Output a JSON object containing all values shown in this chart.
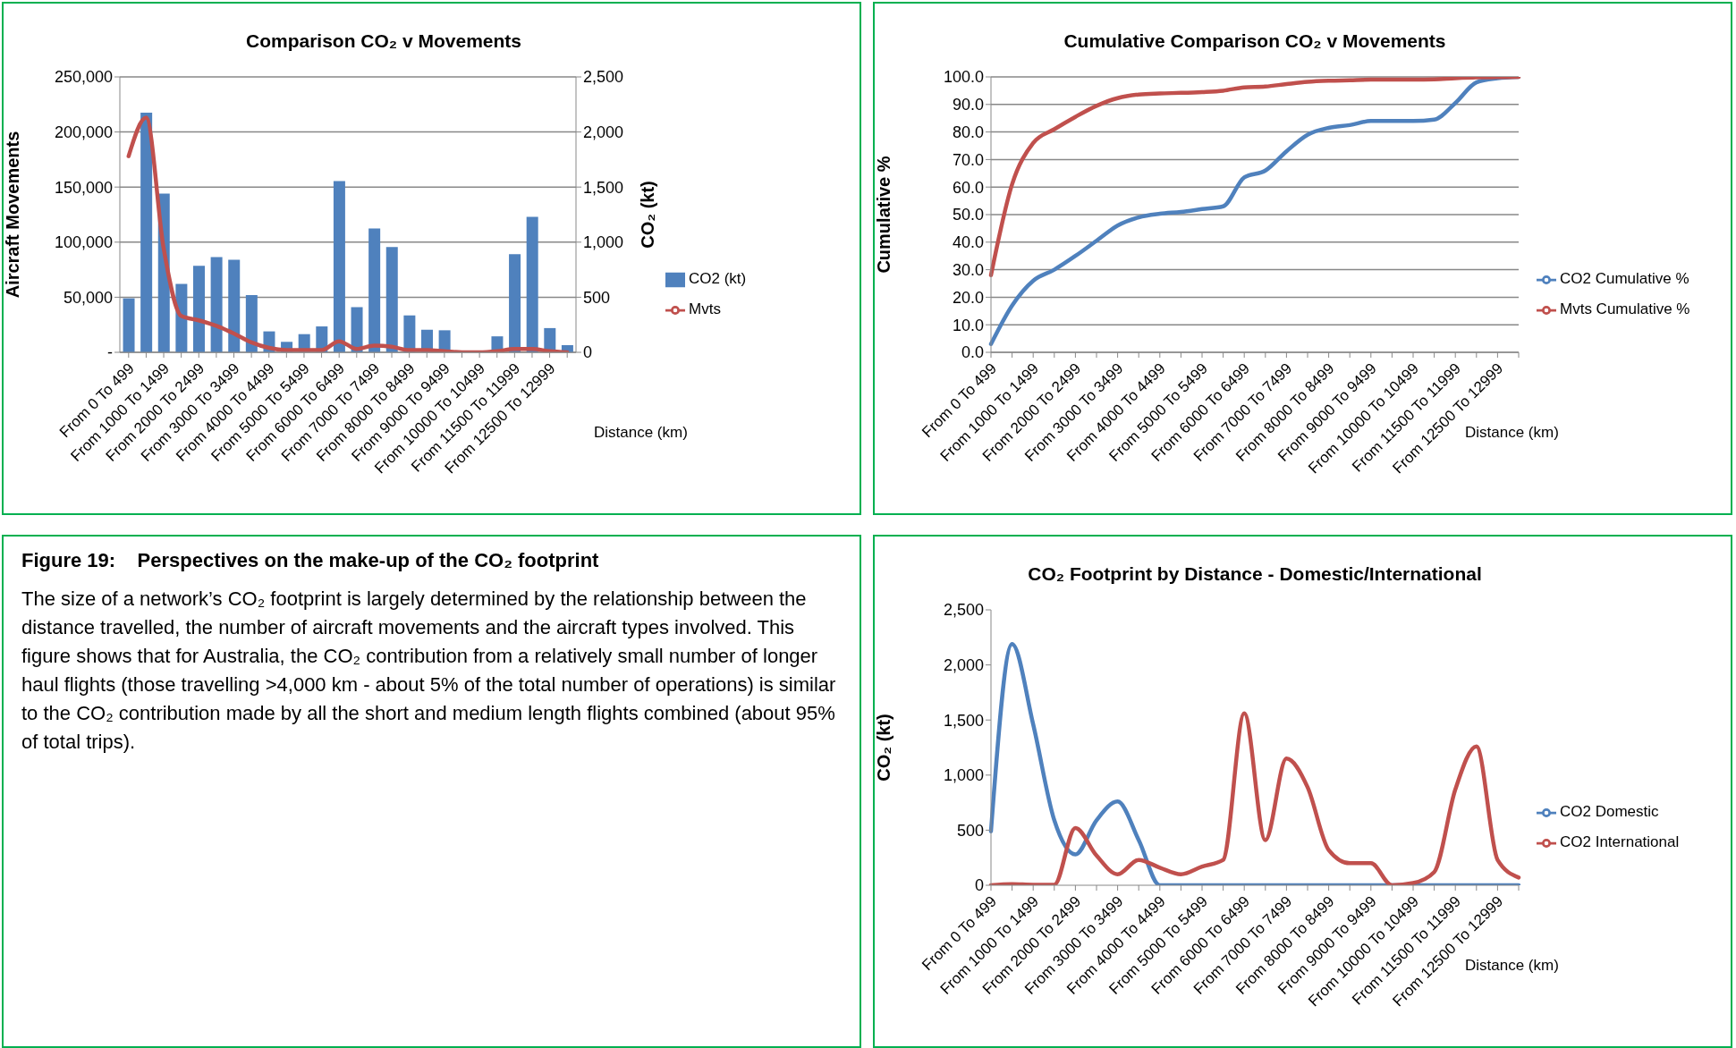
{
  "chart_data": [
    {
      "type": "bar",
      "title": "Comparison CO₂ v Movements",
      "xlabel": "Distance (km)",
      "ylabel": "Aircraft Movements",
      "y2label": "CO₂ (kt)",
      "categories": [
        "From 0 To 499",
        null,
        "From 1000 To 1499",
        null,
        "From 2000 To 2499",
        null,
        "From 3000 To 3499",
        null,
        "From 4000 To 4499",
        null,
        "From 5000 To 5499",
        null,
        "From 6000 To 6499",
        null,
        "From 7000 To 7499",
        null,
        "From 8000 To 8499",
        null,
        "From 9000 To 9499",
        null,
        "From 10000 To 10499",
        null,
        "From 11500 To 11999",
        null,
        "From 12500 To 12999",
        null
      ],
      "series": [
        {
          "name": "CO2 (kt)",
          "type": "bar",
          "axis": "y2",
          "color": "#4f81bd",
          "values": [
            490,
            2175,
            1440,
            620,
            785,
            865,
            840,
            520,
            190,
            95,
            165,
            235,
            1555,
            410,
            1125,
            955,
            335,
            205,
            200,
            0,
            0,
            145,
            890,
            1230,
            220,
            65
          ]
        },
        {
          "name": "Mvts",
          "type": "line",
          "axis": "y",
          "color": "#c0504d",
          "values": [
            178000,
            213000,
            94000,
            33000,
            29000,
            24000,
            17000,
            9000,
            4000,
            2000,
            2000,
            2000,
            10000,
            3000,
            6000,
            5000,
            2000,
            2000,
            1000,
            0,
            0,
            1000,
            3000,
            3000,
            1000,
            0
          ]
        }
      ],
      "ylim": [
        0,
        250000
      ],
      "yticks": [
        {
          "value": 0,
          "label": "-"
        },
        {
          "value": 50000,
          "label": "50,000"
        },
        {
          "value": 100000,
          "label": "100,000"
        },
        {
          "value": 150000,
          "label": "150,000"
        },
        {
          "value": 200000,
          "label": "200,000"
        },
        {
          "value": 250000,
          "label": "250,000"
        }
      ],
      "y2lim": [
        0,
        2500
      ],
      "y2ticks": [
        0,
        500,
        {
          "value": 1000,
          "label": "1,000"
        },
        {
          "value": 1500,
          "label": "1,500"
        },
        {
          "value": 2000,
          "label": "2,000"
        },
        {
          "value": 2500,
          "label": "2,500"
        }
      ],
      "grid": "y",
      "legend": "right"
    },
    {
      "type": "line",
      "title": "Cumulative Comparison CO₂ v Movements",
      "xlabel": "Distance (km)",
      "ylabel": "Cumulative %",
      "categories": [
        "From 0 To 499",
        null,
        "From 1000 To 1499",
        null,
        "From 2000 To 2499",
        null,
        "From 3000 To 3499",
        null,
        "From 4000 To 4499",
        null,
        "From 5000 To 5499",
        null,
        "From 6000 To 6499",
        null,
        "From 7000 To 7499",
        null,
        "From 8000 To 8499",
        null,
        "From 9000 To 9499",
        null,
        "From 10000 To 10499",
        null,
        "From 11500 To 11999",
        null,
        "From 12500 To 12999",
        null
      ],
      "series": [
        {
          "name": "CO2 Cumulative %",
          "color": "#4f81bd",
          "values": [
            3,
            17,
            26,
            30,
            35,
            40.5,
            46,
            49,
            50.3,
            51,
            52,
            53,
            63.5,
            66,
            73,
            79,
            81.5,
            82.5,
            84,
            84,
            84,
            84.5,
            90.5,
            98,
            99.5,
            100
          ]
        },
        {
          "name": "Mvts Cumulative %",
          "color": "#c0504d",
          "values": [
            28,
            61,
            76,
            81,
            85.5,
            89.5,
            92.3,
            93.6,
            94,
            94.2,
            94.5,
            95,
            96.2,
            96.5,
            97.4,
            98.2,
            98.6,
            98.8,
            99,
            99,
            99,
            99.1,
            99.5,
            99.8,
            99.9,
            100
          ]
        }
      ],
      "ylim": [
        0,
        100
      ],
      "yticks": [
        {
          "value": 0,
          "label": "0.0"
        },
        {
          "value": 10,
          "label": "10.0"
        },
        {
          "value": 20,
          "label": "20.0"
        },
        {
          "value": 30,
          "label": "30.0"
        },
        {
          "value": 40,
          "label": "40.0"
        },
        {
          "value": 50,
          "label": "50.0"
        },
        {
          "value": 60,
          "label": "60.0"
        },
        {
          "value": 70,
          "label": "70.0"
        },
        {
          "value": 80,
          "label": "80.0"
        },
        {
          "value": 90,
          "label": "90.0"
        },
        {
          "value": 100,
          "label": "100.0"
        }
      ],
      "grid": "y",
      "legend": "right"
    },
    {
      "type": "other",
      "title": "Figure 19:    Perspectives on the make-up of the CO₂ footprint",
      "annotations": [
        "The size of a network’s CO₂ footprint is largely determined by the relationship between the distance travelled, the number of aircraft movements and the aircraft types involved.  This figure shows that for Australia, the CO₂ contribution from a relatively small number of longer haul flights (those travelling >4,000 km - about 5% of the total number of operations) is similar to the CO₂ contribution made by all the short and medium length flights combined (about 95% of total trips)."
      ]
    },
    {
      "type": "line",
      "title": "CO₂ Footprint by Distance - Domestic/International",
      "xlabel": "Distance (km)",
      "ylabel": "CO₂ (kt)",
      "categories": [
        "From 0 To 499",
        null,
        "From 1000 To 1499",
        null,
        "From 2000 To 2499",
        null,
        "From 3000 To 3499",
        null,
        "From 4000 To 4499",
        null,
        "From 5000 To 5499",
        null,
        "From 6000 To 6499",
        null,
        "From 7000 To 7499",
        null,
        "From 8000 To 8499",
        null,
        "From 9000 To 9499",
        null,
        "From 10000 To 10499",
        null,
        "From 11500 To 11999",
        null,
        "From 12500 To 12999",
        null
      ],
      "series": [
        {
          "name": "CO2 Domestic",
          "color": "#4f81bd",
          "values": [
            490,
            2190,
            1460,
            590,
            280,
            590,
            760,
            410,
            0,
            0,
            0,
            0,
            0,
            0,
            0,
            0,
            0,
            0,
            0,
            0,
            0,
            0,
            0,
            0,
            0,
            0
          ]
        },
        {
          "name": "CO2 International",
          "color": "#c0504d",
          "values": [
            0,
            10,
            5,
            5,
            520,
            270,
            100,
            230,
            160,
            100,
            170,
            230,
            1560,
            410,
            1150,
            890,
            320,
            200,
            200,
            0,
            20,
            120,
            870,
            1260,
            230,
            70
          ]
        }
      ],
      "ylim": [
        0,
        2500
      ],
      "yticks": [
        0,
        500,
        {
          "value": 1000,
          "label": "1,000"
        },
        {
          "value": 1500,
          "label": "1,500"
        },
        {
          "value": 2000,
          "label": "2,000"
        },
        {
          "value": 2500,
          "label": "2,500"
        }
      ],
      "legend": "right"
    }
  ]
}
